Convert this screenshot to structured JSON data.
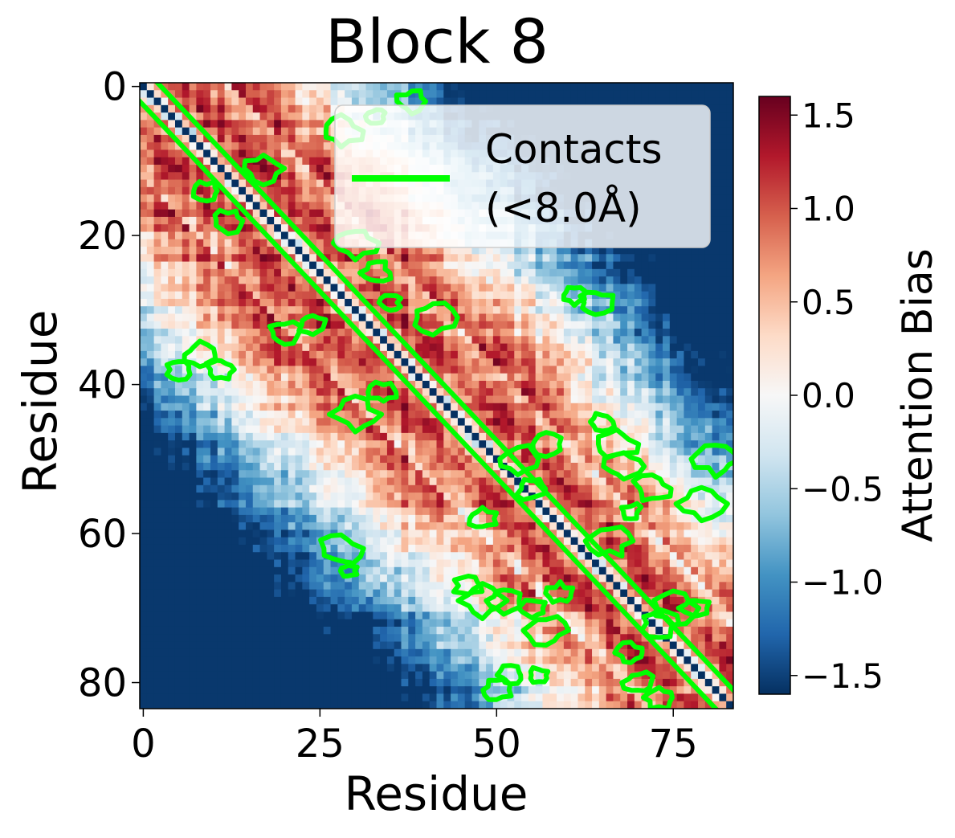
{
  "chart_data": {
    "type": "heatmap",
    "title": "Block 8",
    "xlabel": "Residue",
    "ylabel": "Residue",
    "n": 84,
    "x_ticks": [
      0,
      25,
      50,
      75
    ],
    "y_ticks": [
      0,
      20,
      40,
      60,
      80
    ],
    "y_inverted": true,
    "colormap": "RdBu_r",
    "colorbar": {
      "label": "Attention Bias",
      "range": [
        -1.6,
        1.6
      ],
      "ticks": [
        -1.5,
        -1.0,
        -0.5,
        0.0,
        0.5,
        1.0,
        1.5
      ],
      "tick_labels": [
        "−1.5",
        "−1.0",
        "−0.5",
        "0.0",
        "0.5",
        "1.0",
        "1.5"
      ]
    },
    "diagonal_value": -1.6,
    "band_description": "positive bias along diagonal band |i-j| from 2 to 10, peaking about 1.0-1.3; negative bias far from diagonal down to about -1.4",
    "contact_threshold_label": "Contacts\n(<8.0Å)",
    "legend": {
      "entries": [
        "Contacts",
        "(<8.0Å)"
      ],
      "placement": "top-right",
      "line_color": "#00ff00"
    },
    "contact_blobs": [
      {
        "x": 28,
        "y": 6
      },
      {
        "x": 33,
        "y": 4
      },
      {
        "x": 38,
        "y": 2
      },
      {
        "x": 9,
        "y": 14
      },
      {
        "x": 12,
        "y": 18
      },
      {
        "x": 17,
        "y": 11
      },
      {
        "x": 30,
        "y": 21
      },
      {
        "x": 33,
        "y": 25
      },
      {
        "x": 20,
        "y": 33
      },
      {
        "x": 24,
        "y": 32
      },
      {
        "x": 41,
        "y": 31
      },
      {
        "x": 35,
        "y": 29
      },
      {
        "x": 30,
        "y": 44
      },
      {
        "x": 34,
        "y": 41
      },
      {
        "x": 5,
        "y": 38
      },
      {
        "x": 8,
        "y": 36
      },
      {
        "x": 11,
        "y": 38
      },
      {
        "x": 61,
        "y": 28
      },
      {
        "x": 64,
        "y": 29
      },
      {
        "x": 65,
        "y": 45
      },
      {
        "x": 67,
        "y": 48
      },
      {
        "x": 68,
        "y": 51
      },
      {
        "x": 57,
        "y": 48
      },
      {
        "x": 55,
        "y": 54
      },
      {
        "x": 53,
        "y": 50
      },
      {
        "x": 72,
        "y": 54
      },
      {
        "x": 69,
        "y": 57
      },
      {
        "x": 66,
        "y": 61
      },
      {
        "x": 81,
        "y": 50
      },
      {
        "x": 79,
        "y": 56
      },
      {
        "x": 48,
        "y": 58
      },
      {
        "x": 28,
        "y": 62
      },
      {
        "x": 29,
        "y": 65
      },
      {
        "x": 46,
        "y": 67
      },
      {
        "x": 48,
        "y": 69
      },
      {
        "x": 51,
        "y": 69
      },
      {
        "x": 55,
        "y": 70
      },
      {
        "x": 57,
        "y": 73
      },
      {
        "x": 59,
        "y": 68
      },
      {
        "x": 73,
        "y": 72
      },
      {
        "x": 75,
        "y": 70
      },
      {
        "x": 78,
        "y": 70
      },
      {
        "x": 69,
        "y": 76
      },
      {
        "x": 70,
        "y": 80
      },
      {
        "x": 73,
        "y": 82
      },
      {
        "x": 50,
        "y": 81
      },
      {
        "x": 52,
        "y": 79
      },
      {
        "x": 56,
        "y": 79
      }
    ]
  }
}
